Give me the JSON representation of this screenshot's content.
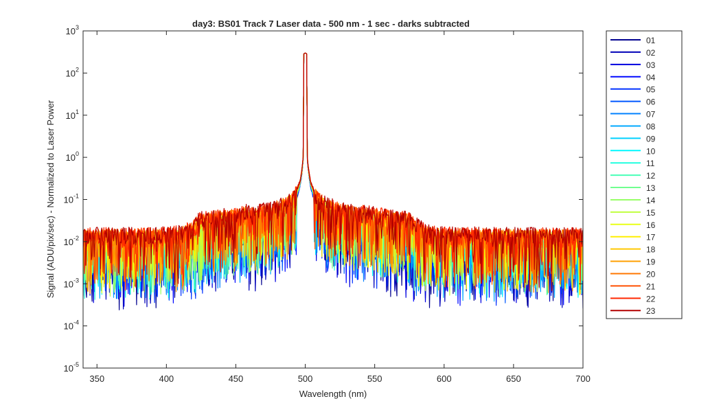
{
  "chart_data": {
    "type": "line",
    "title": "day3: BS01  Track 7 Laser data - 500 nm - 1 sec - darks subtracted",
    "xlabel": "Wavelength (nm)",
    "ylabel": "Signal (ADU/pix/sec) - Normalized to Laser Power",
    "xlim": [
      340,
      700
    ],
    "ylim": [
      1e-05,
      1000
    ],
    "yscale": "log",
    "x_ticks": [
      350,
      400,
      450,
      500,
      550,
      600,
      650,
      700
    ],
    "y_ticks": [
      {
        "base": "10",
        "exp": "-5",
        "value": 1e-05
      },
      {
        "base": "10",
        "exp": "-4",
        "value": 0.0001
      },
      {
        "base": "10",
        "exp": "-3",
        "value": 0.001
      },
      {
        "base": "10",
        "exp": "-2",
        "value": 0.01
      },
      {
        "base": "10",
        "exp": "-1",
        "value": 0.1
      },
      {
        "base": "10",
        "exp": "0",
        "value": 1
      },
      {
        "base": "10",
        "exp": "1",
        "value": 10
      },
      {
        "base": "10",
        "exp": "2",
        "value": 100
      },
      {
        "base": "10",
        "exp": "3",
        "value": 1000
      }
    ],
    "peak": {
      "x": 500,
      "y": 300
    },
    "legend_position": "outside-right",
    "grid": false,
    "series": [
      {
        "name": "01",
        "color": "#00008f",
        "shoulder": 0.012,
        "floor": 0.005
      },
      {
        "name": "02",
        "color": "#0000b7",
        "shoulder": 0.014,
        "floor": 0.0055
      },
      {
        "name": "03",
        "color": "#0000df",
        "shoulder": 0.016,
        "floor": 0.006
      },
      {
        "name": "04",
        "color": "#0008ff",
        "shoulder": 0.018,
        "floor": 0.0065
      },
      {
        "name": "05",
        "color": "#0030ff",
        "shoulder": 0.021,
        "floor": 0.007
      },
      {
        "name": "06",
        "color": "#0058ff",
        "shoulder": 0.024,
        "floor": 0.0075
      },
      {
        "name": "07",
        "color": "#0080ff",
        "shoulder": 0.027,
        "floor": 0.008
      },
      {
        "name": "08",
        "color": "#00a8ff",
        "shoulder": 0.03,
        "floor": 0.0085
      },
      {
        "name": "09",
        "color": "#00d0ff",
        "shoulder": 0.033,
        "floor": 0.009
      },
      {
        "name": "10",
        "color": "#00f8ff",
        "shoulder": 0.036,
        "floor": 0.0095
      },
      {
        "name": "11",
        "color": "#20ffdf",
        "shoulder": 0.039,
        "floor": 0.01
      },
      {
        "name": "12",
        "color": "#48ffb7",
        "shoulder": 0.042,
        "floor": 0.0105
      },
      {
        "name": "13",
        "color": "#70ff8f",
        "shoulder": 0.045,
        "floor": 0.011
      },
      {
        "name": "14",
        "color": "#98ff67",
        "shoulder": 0.048,
        "floor": 0.0115
      },
      {
        "name": "15",
        "color": "#c0ff3f",
        "shoulder": 0.051,
        "floor": 0.012
      },
      {
        "name": "16",
        "color": "#e8ff17",
        "shoulder": 0.054,
        "floor": 0.0125
      },
      {
        "name": "17",
        "color": "#ffef00",
        "shoulder": 0.057,
        "floor": 0.013
      },
      {
        "name": "18",
        "color": "#ffc700",
        "shoulder": 0.06,
        "floor": 0.0135
      },
      {
        "name": "19",
        "color": "#ff9f00",
        "shoulder": 0.063,
        "floor": 0.014
      },
      {
        "name": "20",
        "color": "#ff7700",
        "shoulder": 0.066,
        "floor": 0.0145
      },
      {
        "name": "21",
        "color": "#ff4f00",
        "shoulder": 0.069,
        "floor": 0.015
      },
      {
        "name": "22",
        "color": "#ff2700",
        "shoulder": 0.072,
        "floor": 0.0155
      },
      {
        "name": "23",
        "color": "#b30000",
        "shoulder": 0.075,
        "floor": 0.016
      }
    ]
  }
}
